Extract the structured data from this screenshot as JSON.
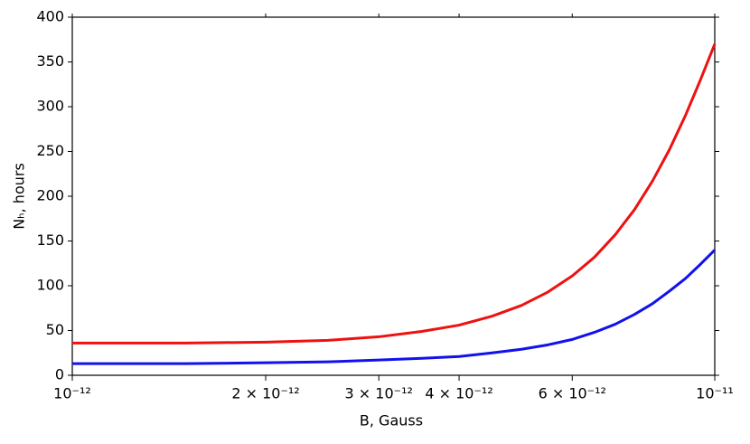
{
  "chart_data": {
    "type": "line",
    "x_label": "B, Gauss",
    "y_label": "Nₕ, hours",
    "x": [
      1e-12,
      1.5e-12,
      2e-12,
      2.5e-12,
      3e-12,
      3.5e-12,
      4e-12,
      4.5e-12,
      5e-12,
      5.5e-12,
      6e-12,
      6.5e-12,
      7e-12,
      7.5e-12,
      8e-12,
      8.5e-12,
      9e-12,
      9.5e-12,
      1e-11
    ],
    "series": [
      {
        "color": "#ee1111",
        "values": [
          36,
          36,
          37,
          39,
          43,
          49,
          56,
          66,
          78,
          93,
          111,
          132,
          157,
          185,
          217,
          252,
          290,
          330,
          370
        ]
      },
      {
        "color": "#1111ee",
        "values": [
          13,
          13,
          14,
          15,
          17,
          19,
          21,
          25,
          29,
          34,
          40,
          48,
          57,
          68,
          80,
          94,
          108,
          124,
          140
        ]
      }
    ],
    "xscale": "log",
    "xlim": [
      1e-12,
      1e-11
    ],
    "xticks": [
      {
        "value": 1e-12,
        "label": "10⁻¹²"
      },
      {
        "value": 2e-12,
        "label": "2 × 10⁻¹²"
      },
      {
        "value": 3e-12,
        "label": "3 × 10⁻¹²"
      },
      {
        "value": 4e-12,
        "label": "4 × 10⁻¹²"
      },
      {
        "value": 6e-12,
        "label": "6 × 10⁻¹²"
      },
      {
        "value": 1e-11,
        "label": "10⁻¹¹"
      }
    ],
    "ylim": [
      0,
      400
    ],
    "yticks": [
      0,
      50,
      100,
      150,
      200,
      250,
      300,
      350,
      400
    ]
  }
}
